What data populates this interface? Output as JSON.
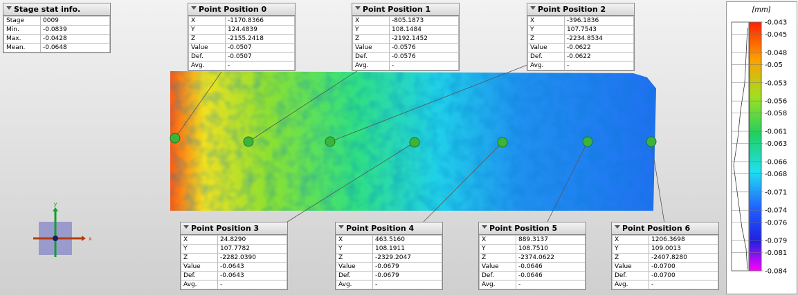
{
  "stage_info": {
    "title": "Stage stat info.",
    "rows": [
      [
        "Stage",
        "0009"
      ],
      [
        "Min.",
        "-0.0839"
      ],
      [
        "Max.",
        "-0.0428"
      ],
      [
        "Mean.",
        "-0.0648"
      ]
    ]
  },
  "points": [
    {
      "title": "Point Position 0",
      "rows": [
        [
          "X",
          "-1170.8366"
        ],
        [
          "Y",
          "124.4839"
        ],
        [
          "Z",
          "-2155.2418"
        ],
        [
          "Value",
          "-0.0507"
        ],
        [
          "Def.",
          "-0.0507"
        ],
        [
          "Avg.",
          "-"
        ]
      ]
    },
    {
      "title": "Point Position 1",
      "rows": [
        [
          "X",
          "-805.1873"
        ],
        [
          "Y",
          "108.1484"
        ],
        [
          "Z",
          "-2192.1452"
        ],
        [
          "Value",
          "-0.0576"
        ],
        [
          "Def.",
          "-0.0576"
        ],
        [
          "Avg.",
          "-"
        ]
      ]
    },
    {
      "title": "Point Position 2",
      "rows": [
        [
          "X",
          "-396.1836"
        ],
        [
          "Y",
          "107.7543"
        ],
        [
          "Z",
          "-2234.8534"
        ],
        [
          "Value",
          "-0.0622"
        ],
        [
          "Def.",
          "-0.0622"
        ],
        [
          "Avg.",
          "-"
        ]
      ]
    },
    {
      "title": "Point Position 3",
      "rows": [
        [
          "X",
          "24.8290"
        ],
        [
          "Y",
          "107.7782"
        ],
        [
          "Z",
          "-2282.0390"
        ],
        [
          "Value",
          "-0.0643"
        ],
        [
          "Def.",
          "-0.0643"
        ],
        [
          "Avg.",
          "-"
        ]
      ]
    },
    {
      "title": "Point Position 4",
      "rows": [
        [
          "X",
          "463.5160"
        ],
        [
          "Y",
          "108.1911"
        ],
        [
          "Z",
          "-2329.2047"
        ],
        [
          "Value",
          "-0.0679"
        ],
        [
          "Def.",
          "-0.0679"
        ],
        [
          "Avg.",
          "-"
        ]
      ]
    },
    {
      "title": "Point Position 5",
      "rows": [
        [
          "X",
          "889.3137"
        ],
        [
          "Y",
          "108.7510"
        ],
        [
          "Z",
          "-2374.0622"
        ],
        [
          "Value",
          "-0.0646"
        ],
        [
          "Def.",
          "-0.0646"
        ],
        [
          "Avg.",
          "-"
        ]
      ]
    },
    {
      "title": "Point Position 6",
      "rows": [
        [
          "X",
          "1206.3698"
        ],
        [
          "Y",
          "109.0013"
        ],
        [
          "Z",
          "-2407.8280"
        ],
        [
          "Value",
          "-0.0700"
        ],
        [
          "Def.",
          "-0.0700"
        ],
        [
          "Avg.",
          "-"
        ]
      ]
    }
  ],
  "colorbar": {
    "unit": "[mm]",
    "ticks": [
      -0.043,
      -0.045,
      -0.048,
      -0.05,
      -0.053,
      -0.056,
      -0.058,
      -0.061,
      -0.063,
      -0.066,
      -0.068,
      -0.071,
      -0.074,
      -0.076,
      -0.079,
      -0.081,
      -0.084
    ]
  },
  "gizmo": {
    "x": "x",
    "y": "y"
  }
}
